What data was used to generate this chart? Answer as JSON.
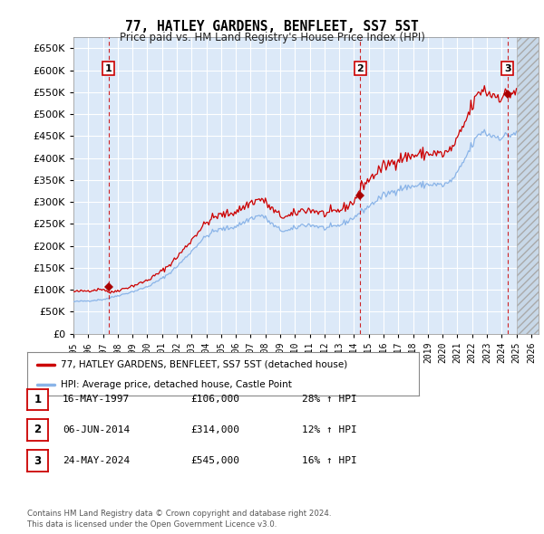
{
  "title": "77, HATLEY GARDENS, BENFLEET, SS7 5ST",
  "subtitle": "Price paid vs. HM Land Registry's House Price Index (HPI)",
  "ylim": [
    0,
    675000
  ],
  "yticks": [
    0,
    50000,
    100000,
    150000,
    200000,
    250000,
    300000,
    350000,
    400000,
    450000,
    500000,
    550000,
    600000,
    650000
  ],
  "xlim_start": 1995.0,
  "xlim_end": 2026.5,
  "xticks": [
    1995,
    1996,
    1997,
    1998,
    1999,
    2000,
    2001,
    2002,
    2003,
    2004,
    2005,
    2006,
    2007,
    2008,
    2009,
    2010,
    2011,
    2012,
    2013,
    2014,
    2015,
    2016,
    2017,
    2018,
    2019,
    2020,
    2021,
    2022,
    2023,
    2024,
    2025,
    2026
  ],
  "background_color": "#dce9f8",
  "grid_color": "#ffffff",
  "hpi_line_color": "#8ab4e8",
  "price_line_color": "#cc0000",
  "purchase_marker_color": "#aa0000",
  "vline_color": "#cc0000",
  "box_edge_color": "#cc0000",
  "future_start": 2025.0,
  "purchases": [
    {
      "date": 1997.37,
      "price": 106000,
      "label": "1"
    },
    {
      "date": 2014.43,
      "price": 314000,
      "label": "2"
    },
    {
      "date": 2024.4,
      "price": 545000,
      "label": "3"
    }
  ],
  "legend_label_price": "77, HATLEY GARDENS, BENFLEET, SS7 5ST (detached house)",
  "legend_label_hpi": "HPI: Average price, detached house, Castle Point",
  "table_rows": [
    {
      "num": "1",
      "date": "16-MAY-1997",
      "price": "£106,000",
      "hpi": "28% ↑ HPI"
    },
    {
      "num": "2",
      "date": "06-JUN-2014",
      "price": "£314,000",
      "hpi": "12% ↑ HPI"
    },
    {
      "num": "3",
      "date": "24-MAY-2024",
      "price": "£545,000",
      "hpi": "16% ↑ HPI"
    }
  ],
  "footnote": "Contains HM Land Registry data © Crown copyright and database right 2024.\nThis data is licensed under the Open Government Licence v3.0."
}
